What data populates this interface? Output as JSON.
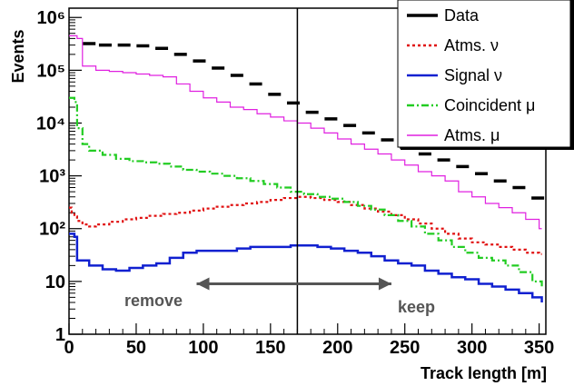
{
  "chart_data": {
    "type": "histogram",
    "xlabel": "Track length [m]",
    "ylabel": "Events",
    "xlim": [
      0,
      355
    ],
    "ylim": [
      1,
      1500000
    ],
    "ylog": true,
    "x_ticks": [
      0,
      50,
      100,
      150,
      200,
      250,
      300,
      350
    ],
    "x_tick_labels": [
      "0",
      "50",
      "100",
      "150",
      "200",
      "250",
      "300",
      "350"
    ],
    "y_tick_labels": [
      "1",
      "10",
      "10²",
      "10³",
      "10⁴",
      "10⁵",
      "10⁶"
    ],
    "cut_x": 170,
    "legend_position": "top-right",
    "series": [
      {
        "name": "Data",
        "color": "#000000",
        "style": "marker",
        "points": [
          [
            15,
            320000
          ],
          [
            27,
            300000
          ],
          [
            41,
            300000
          ],
          [
            55,
            290000
          ],
          [
            69,
            260000
          ],
          [
            83,
            200000
          ],
          [
            97,
            150000
          ],
          [
            111,
            110000
          ],
          [
            125,
            80000
          ],
          [
            139,
            55000
          ],
          [
            153,
            35000
          ],
          [
            167,
            24000
          ],
          [
            181,
            16000
          ],
          [
            195,
            12000
          ],
          [
            209,
            9000
          ],
          [
            223,
            6500
          ],
          [
            237,
            4800
          ],
          [
            251,
            3500
          ],
          [
            265,
            2600
          ],
          [
            279,
            2000
          ],
          [
            293,
            1500
          ],
          [
            307,
            1100
          ],
          [
            321,
            800
          ],
          [
            335,
            600
          ],
          [
            349,
            380
          ]
        ]
      },
      {
        "name": "Atms. ν",
        "color": "#e01010",
        "style": "dotted",
        "points": [
          [
            0,
            250
          ],
          [
            2,
            200
          ],
          [
            4,
            170
          ],
          [
            6,
            140
          ],
          [
            10,
            120
          ],
          [
            15,
            110
          ],
          [
            20,
            120
          ],
          [
            30,
            135
          ],
          [
            40,
            150
          ],
          [
            50,
            160
          ],
          [
            60,
            175
          ],
          [
            70,
            190
          ],
          [
            80,
            200
          ],
          [
            90,
            220
          ],
          [
            100,
            240
          ],
          [
            110,
            260
          ],
          [
            120,
            280
          ],
          [
            130,
            300
          ],
          [
            140,
            320
          ],
          [
            150,
            350
          ],
          [
            160,
            380
          ],
          [
            170,
            400
          ],
          [
            180,
            380
          ],
          [
            190,
            350
          ],
          [
            200,
            320
          ],
          [
            210,
            280
          ],
          [
            220,
            240
          ],
          [
            230,
            210
          ],
          [
            240,
            180
          ],
          [
            250,
            150
          ],
          [
            260,
            125
          ],
          [
            270,
            100
          ],
          [
            280,
            80
          ],
          [
            290,
            65
          ],
          [
            300,
            55
          ],
          [
            310,
            50
          ],
          [
            320,
            45
          ],
          [
            330,
            40
          ],
          [
            340,
            35
          ],
          [
            350,
            33
          ]
        ]
      },
      {
        "name": "Signal ν",
        "color": "#1020d0",
        "style": "solid",
        "points": [
          [
            0,
            80
          ],
          [
            4,
            70
          ],
          [
            6,
            25
          ],
          [
            15,
            20
          ],
          [
            25,
            17
          ],
          [
            35,
            16
          ],
          [
            45,
            18
          ],
          [
            55,
            20
          ],
          [
            65,
            22
          ],
          [
            75,
            28
          ],
          [
            85,
            35
          ],
          [
            95,
            38
          ],
          [
            105,
            38
          ],
          [
            115,
            38
          ],
          [
            125,
            42
          ],
          [
            135,
            45
          ],
          [
            145,
            45
          ],
          [
            155,
            45
          ],
          [
            165,
            48
          ],
          [
            175,
            48
          ],
          [
            185,
            45
          ],
          [
            195,
            42
          ],
          [
            205,
            38
          ],
          [
            215,
            35
          ],
          [
            225,
            30
          ],
          [
            235,
            25
          ],
          [
            245,
            22
          ],
          [
            255,
            20
          ],
          [
            265,
            16
          ],
          [
            275,
            14
          ],
          [
            285,
            12
          ],
          [
            295,
            11
          ],
          [
            305,
            9
          ],
          [
            315,
            8
          ],
          [
            325,
            7
          ],
          [
            335,
            6
          ],
          [
            345,
            5
          ],
          [
            352,
            4
          ]
        ]
      },
      {
        "name": "Coincident μ",
        "color": "#22cc22",
        "style": "dashdot",
        "points": [
          [
            0,
            30000
          ],
          [
            4,
            25000
          ],
          [
            6,
            8000
          ],
          [
            10,
            4000
          ],
          [
            15,
            3000
          ],
          [
            25,
            2500
          ],
          [
            35,
            2100
          ],
          [
            45,
            1900
          ],
          [
            55,
            1800
          ],
          [
            65,
            1700
          ],
          [
            75,
            1500
          ],
          [
            85,
            1300
          ],
          [
            95,
            1200
          ],
          [
            105,
            1100
          ],
          [
            115,
            1000
          ],
          [
            125,
            900
          ],
          [
            135,
            800
          ],
          [
            145,
            700
          ],
          [
            155,
            600
          ],
          [
            165,
            500
          ],
          [
            175,
            450
          ],
          [
            185,
            400
          ],
          [
            195,
            370
          ],
          [
            205,
            320
          ],
          [
            215,
            270
          ],
          [
            225,
            230
          ],
          [
            235,
            180
          ],
          [
            245,
            140
          ],
          [
            255,
            110
          ],
          [
            265,
            80
          ],
          [
            275,
            60
          ],
          [
            285,
            45
          ],
          [
            295,
            35
          ],
          [
            305,
            28
          ],
          [
            315,
            25
          ],
          [
            325,
            20
          ],
          [
            335,
            15
          ],
          [
            345,
            10
          ],
          [
            352,
            8
          ]
        ]
      },
      {
        "name": "Atms. μ",
        "color": "#e020e0",
        "style": "solid",
        "points": [
          [
            0,
            450000
          ],
          [
            6,
            400000
          ],
          [
            10,
            120000
          ],
          [
            20,
            100000
          ],
          [
            30,
            95000
          ],
          [
            40,
            90000
          ],
          [
            50,
            85000
          ],
          [
            60,
            80000
          ],
          [
            70,
            75000
          ],
          [
            80,
            55000
          ],
          [
            90,
            40000
          ],
          [
            100,
            30000
          ],
          [
            110,
            25000
          ],
          [
            120,
            20000
          ],
          [
            130,
            18000
          ],
          [
            140,
            15000
          ],
          [
            150,
            13000
          ],
          [
            160,
            11000
          ],
          [
            170,
            10000
          ],
          [
            180,
            8000
          ],
          [
            190,
            6500
          ],
          [
            200,
            5000
          ],
          [
            210,
            4000
          ],
          [
            220,
            3200
          ],
          [
            230,
            2600
          ],
          [
            240,
            2000
          ],
          [
            250,
            1600
          ],
          [
            260,
            1200
          ],
          [
            270,
            1000
          ],
          [
            280,
            800
          ],
          [
            290,
            500
          ],
          [
            300,
            400
          ],
          [
            310,
            300
          ],
          [
            320,
            250
          ],
          [
            330,
            200
          ],
          [
            340,
            150
          ],
          [
            350,
            100
          ]
        ]
      }
    ],
    "annotations": [
      {
        "text": "remove",
        "direction": "left",
        "color": "#555555",
        "x_from": 170,
        "x_to": 95,
        "y": 9
      },
      {
        "text": "keep",
        "direction": "right",
        "color": "#555555",
        "x_from": 170,
        "x_to": 240,
        "y": 9
      }
    ]
  }
}
